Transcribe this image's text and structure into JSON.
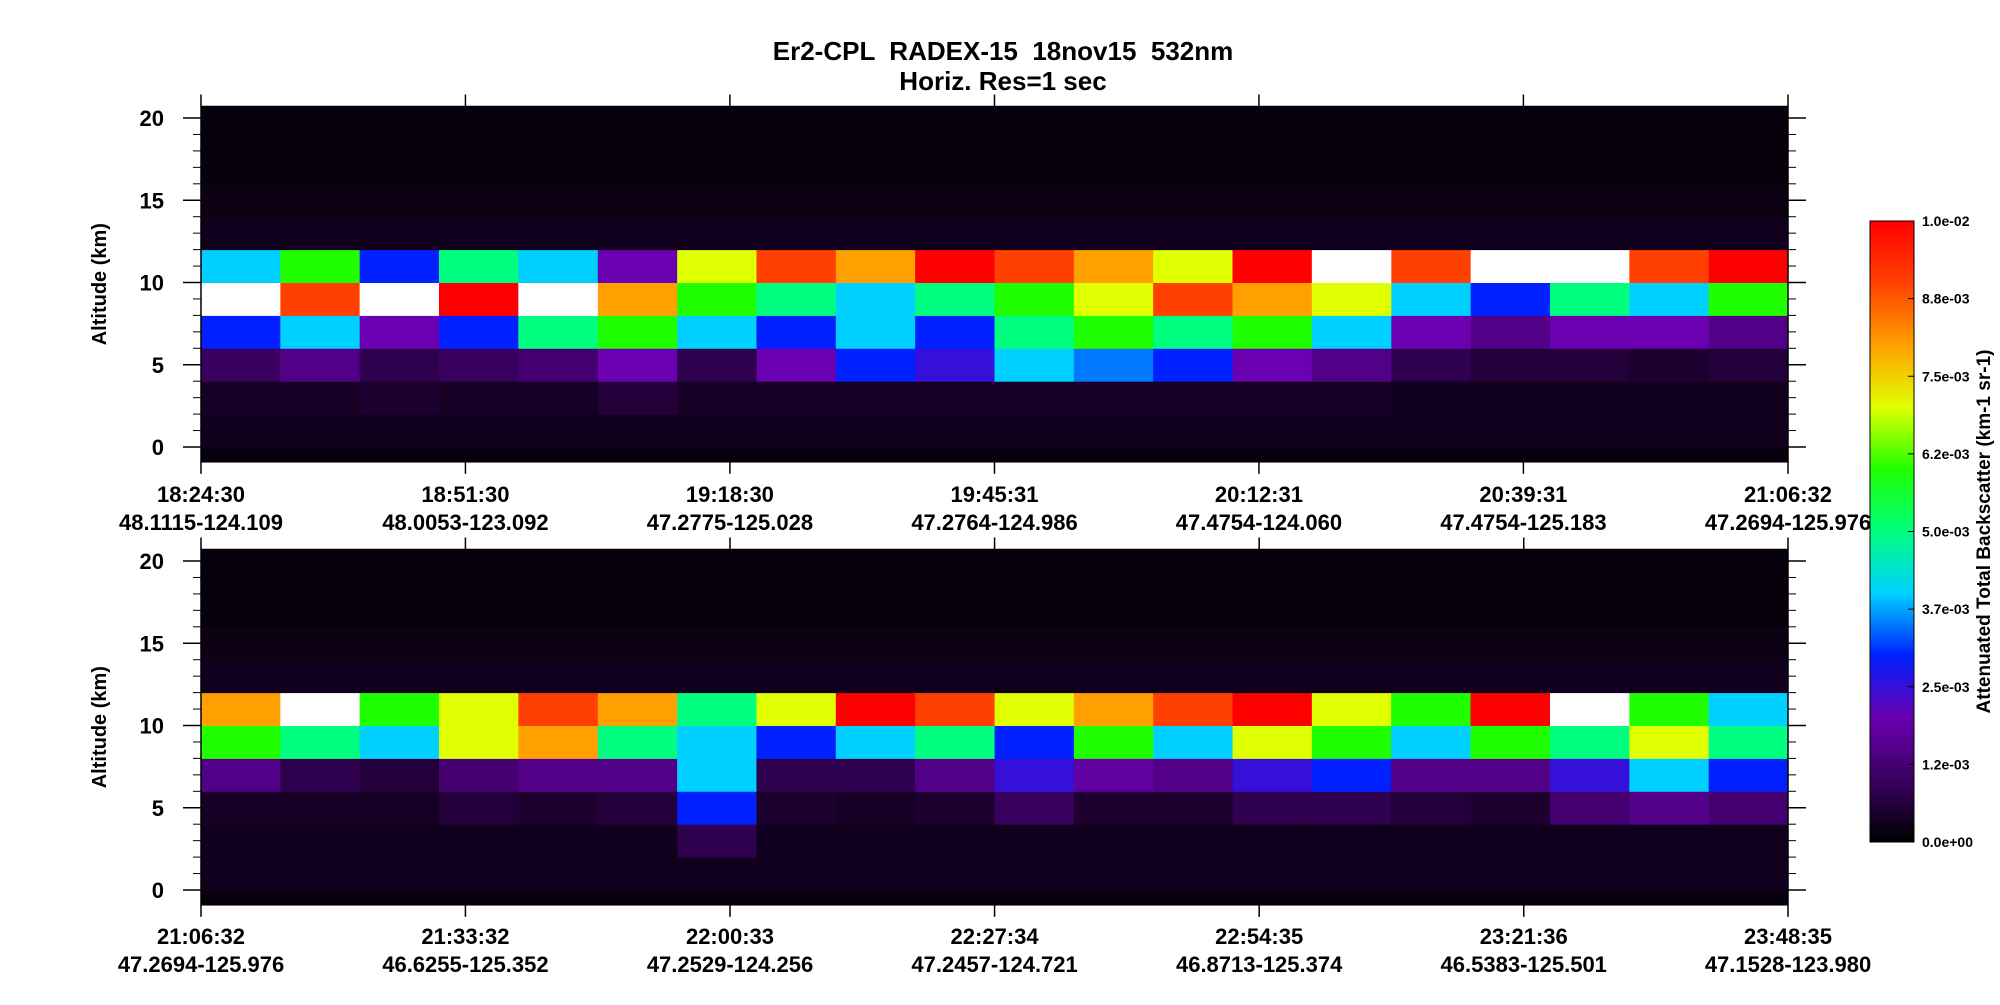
{
  "title": "Er2-CPL  RADEX-15  18nov15  532nm",
  "subtitle": "Horiz. Res=1 sec",
  "colorbar": {
    "label": "Attenuated Total Backscatter (km-1 sr-1)",
    "zlim": [
      0,
      0.01
    ],
    "ticks": [
      {
        "value": 0,
        "label": "0.0e+00"
      },
      {
        "value": 0.00125,
        "label": "1.2e-03"
      },
      {
        "value": 0.0025,
        "label": "2.5e-03"
      },
      {
        "value": 0.00375,
        "label": "3.7e-03"
      },
      {
        "value": 0.005,
        "label": "5.0e-03"
      },
      {
        "value": 0.00625,
        "label": "6.2e-03"
      },
      {
        "value": 0.0075,
        "label": "7.5e-03"
      },
      {
        "value": 0.00875,
        "label": "8.8e-03"
      },
      {
        "value": 0.01,
        "label": "1.0e-02"
      }
    ]
  },
  "chart_data": [
    {
      "type": "heatmap",
      "y_label": "Altitude (km)",
      "xlim": [
        66270,
        75992
      ],
      "xticks": [
        {
          "value": 66270,
          "label": "18:24:30",
          "location": "48.1115-124.109"
        },
        {
          "value": 67890,
          "label": "18:51:30",
          "location": "48.0053-123.092"
        },
        {
          "value": 69510,
          "label": "19:18:30",
          "location": "47.2775-125.028"
        },
        {
          "value": 71131,
          "label": "19:45:31",
          "location": "47.2764-124.986"
        },
        {
          "value": 72751,
          "label": "20:12:31",
          "location": "47.4754-124.060"
        },
        {
          "value": 74371,
          "label": "20:39:31",
          "location": "47.4754-125.183"
        },
        {
          "value": 75992,
          "label": "21:06:32",
          "location": "47.2694-125.976"
        }
      ],
      "ylim": [
        -0.9,
        20.7
      ],
      "yticks": [
        0,
        5,
        10,
        15,
        20
      ],
      "x_bins": [
        66270,
        66756,
        67242,
        67728,
        68214,
        68701,
        69187,
        69673,
        70159,
        70645,
        71131,
        71617,
        72103,
        72589,
        73075,
        73562,
        74048,
        74534,
        75020,
        75506,
        75992
      ],
      "y_bins": [
        0,
        2,
        4,
        6,
        8,
        10,
        12,
        14,
        16,
        18,
        20
      ],
      "values": [
        [
          0.0003,
          0.0003,
          0.0003,
          0.0003,
          0.0003,
          0.0003,
          0.0003,
          0.0003,
          0.0003,
          0.0003,
          0.0003,
          0.0003,
          0.0003,
          0.0003,
          0.0003,
          0.0003,
          0.0003,
          0.0003,
          0.0003,
          0.0003
        ],
        [
          0.0004,
          0.0004,
          0.0005,
          0.0004,
          0.0004,
          0.0006,
          0.0004,
          0.0004,
          0.0004,
          0.0004,
          0.0004,
          0.0004,
          0.0004,
          0.0004,
          0.0004,
          0.0003,
          0.0003,
          0.0003,
          0.0003,
          0.0003
        ],
        [
          0.001,
          0.0015,
          0.0008,
          0.001,
          0.0012,
          0.002,
          0.0008,
          0.002,
          0.003,
          0.0025,
          0.004,
          0.0035,
          0.003,
          0.002,
          0.0015,
          0.0008,
          0.0006,
          0.0006,
          0.0005,
          0.0006
        ],
        [
          0.003,
          0.004,
          0.002,
          0.003,
          0.005,
          0.006,
          0.004,
          0.003,
          0.004,
          0.003,
          0.005,
          0.006,
          0.005,
          0.006,
          0.004,
          0.002,
          0.0015,
          0.002,
          0.002,
          0.0015
        ],
        [
          0.012,
          0.009,
          0.011,
          0.01,
          0.012,
          0.008,
          0.006,
          0.005,
          0.004,
          0.005,
          0.006,
          0.007,
          0.009,
          0.008,
          0.007,
          0.004,
          0.003,
          0.005,
          0.004,
          0.006
        ],
        [
          0.004,
          0.006,
          0.003,
          0.005,
          0.004,
          0.002,
          0.007,
          0.009,
          0.008,
          0.01,
          0.009,
          0.008,
          0.007,
          0.01,
          0.012,
          0.009,
          0.011,
          0.012,
          0.009,
          0.01
        ],
        [
          0.0003,
          0.0003,
          0.0003,
          0.0003,
          0.0003,
          0.0003,
          0.0003,
          0.0003,
          0.0003,
          0.0003,
          0.0003,
          0.0003,
          0.0003,
          0.0003,
          0.0003,
          0.0003,
          0.0003,
          0.0003,
          0.0003,
          0.0003
        ],
        [
          0.0002,
          0.0002,
          0.0002,
          0.0002,
          0.0002,
          0.0002,
          0.0002,
          0.0002,
          0.0002,
          0.0002,
          0.0002,
          0.0002,
          0.0002,
          0.0002,
          0.0002,
          0.0002,
          0.0002,
          0.0002,
          0.0002,
          0.0002
        ],
        [
          0.0001,
          0.0001,
          0.0001,
          0.0001,
          0.0001,
          0.0001,
          0.0001,
          0.0001,
          0.0001,
          0.0001,
          0.0001,
          0.0001,
          0.0001,
          0.0001,
          0.0001,
          0.0001,
          0.0001,
          0.0001,
          0.0001,
          0.0001
        ],
        [
          0.0001,
          0.0001,
          0.0001,
          0.0001,
          0.0001,
          0.0001,
          0.0001,
          0.0001,
          0.0001,
          0.0001,
          0.0001,
          0.0001,
          0.0001,
          0.0001,
          0.0001,
          0.0001,
          0.0001,
          0.0001,
          0.0001,
          0.0001
        ]
      ]
    },
    {
      "type": "heatmap",
      "y_label": "Altitude (km)",
      "xlim": [
        75992,
        85715
      ],
      "xticks": [
        {
          "value": 75992,
          "label": "21:06:32",
          "location": "47.2694-125.976"
        },
        {
          "value": 77612,
          "label": "21:33:32",
          "location": "46.6255-125.352"
        },
        {
          "value": 79233,
          "label": "22:00:33",
          "location": "47.2529-124.256"
        },
        {
          "value": 80854,
          "label": "22:27:34",
          "location": "47.2457-124.721"
        },
        {
          "value": 82475,
          "label": "22:54:35",
          "location": "46.8713-125.374"
        },
        {
          "value": 84096,
          "label": "23:21:36",
          "location": "46.5383-125.501"
        },
        {
          "value": 85715,
          "label": "23:48:35",
          "location": "47.1528-123.980"
        }
      ],
      "ylim": [
        -0.9,
        20.7
      ],
      "yticks": [
        0,
        5,
        10,
        15,
        20
      ],
      "x_bins": [
        75992,
        76478,
        76964,
        77450,
        77936,
        78423,
        78909,
        79395,
        79881,
        80367,
        80854,
        81340,
        81826,
        82312,
        82798,
        83284,
        83770,
        84257,
        84743,
        85229,
        85715
      ],
      "y_bins": [
        0,
        2,
        4,
        6,
        8,
        10,
        12,
        14,
        16,
        18,
        20
      ],
      "values": [
        [
          0.0003,
          0.0003,
          0.0003,
          0.0003,
          0.0003,
          0.0003,
          0.0003,
          0.0003,
          0.0003,
          0.0003,
          0.0003,
          0.0003,
          0.0003,
          0.0003,
          0.0003,
          0.0003,
          0.0003,
          0.0003,
          0.0003,
          0.0003
        ],
        [
          0.0003,
          0.0003,
          0.0003,
          0.0003,
          0.0003,
          0.0003,
          0.0008,
          0.0003,
          0.0003,
          0.0003,
          0.0003,
          0.0003,
          0.0003,
          0.0003,
          0.0003,
          0.0003,
          0.0003,
          0.0003,
          0.0003,
          0.0003
        ],
        [
          0.0004,
          0.0004,
          0.0004,
          0.0006,
          0.0005,
          0.0006,
          0.003,
          0.0005,
          0.0004,
          0.0005,
          0.001,
          0.0005,
          0.0005,
          0.0008,
          0.0008,
          0.0006,
          0.0005,
          0.0012,
          0.0015,
          0.0012
        ],
        [
          0.0015,
          0.0008,
          0.0006,
          0.0012,
          0.0015,
          0.0015,
          0.004,
          0.0008,
          0.0008,
          0.0015,
          0.0025,
          0.0018,
          0.0015,
          0.0025,
          0.003,
          0.0015,
          0.0015,
          0.0025,
          0.004,
          0.003
        ],
        [
          0.006,
          0.005,
          0.004,
          0.007,
          0.008,
          0.005,
          0.004,
          0.003,
          0.004,
          0.005,
          0.003,
          0.006,
          0.004,
          0.007,
          0.006,
          0.004,
          0.006,
          0.005,
          0.007,
          0.005
        ],
        [
          0.008,
          0.011,
          0.006,
          0.007,
          0.009,
          0.008,
          0.005,
          0.007,
          0.01,
          0.009,
          0.007,
          0.008,
          0.009,
          0.01,
          0.007,
          0.006,
          0.01,
          0.011,
          0.006,
          0.004
        ],
        [
          0.0003,
          0.0003,
          0.0003,
          0.0003,
          0.0003,
          0.0003,
          0.0003,
          0.0003,
          0.0003,
          0.0003,
          0.0003,
          0.0003,
          0.0003,
          0.0003,
          0.0003,
          0.0003,
          0.0003,
          0.0003,
          0.0003,
          0.0003
        ],
        [
          0.0002,
          0.0002,
          0.0002,
          0.0002,
          0.0002,
          0.0002,
          0.0002,
          0.0002,
          0.0002,
          0.0002,
          0.0002,
          0.0002,
          0.0002,
          0.0002,
          0.0002,
          0.0002,
          0.0002,
          0.0002,
          0.0002,
          0.0002
        ],
        [
          0.0001,
          0.0001,
          0.0001,
          0.0001,
          0.0001,
          0.0001,
          0.0001,
          0.0001,
          0.0001,
          0.0001,
          0.0001,
          0.0001,
          0.0001,
          0.0001,
          0.0001,
          0.0001,
          0.0001,
          0.0001,
          0.0001,
          0.0001
        ],
        [
          0.0001,
          0.0001,
          0.0001,
          0.0001,
          0.0001,
          0.0001,
          0.0001,
          0.0001,
          0.0001,
          0.0001,
          0.0001,
          0.0001,
          0.0001,
          0.0001,
          0.0001,
          0.0001,
          0.0001,
          0.0001,
          0.0001,
          0.0001
        ]
      ]
    }
  ]
}
